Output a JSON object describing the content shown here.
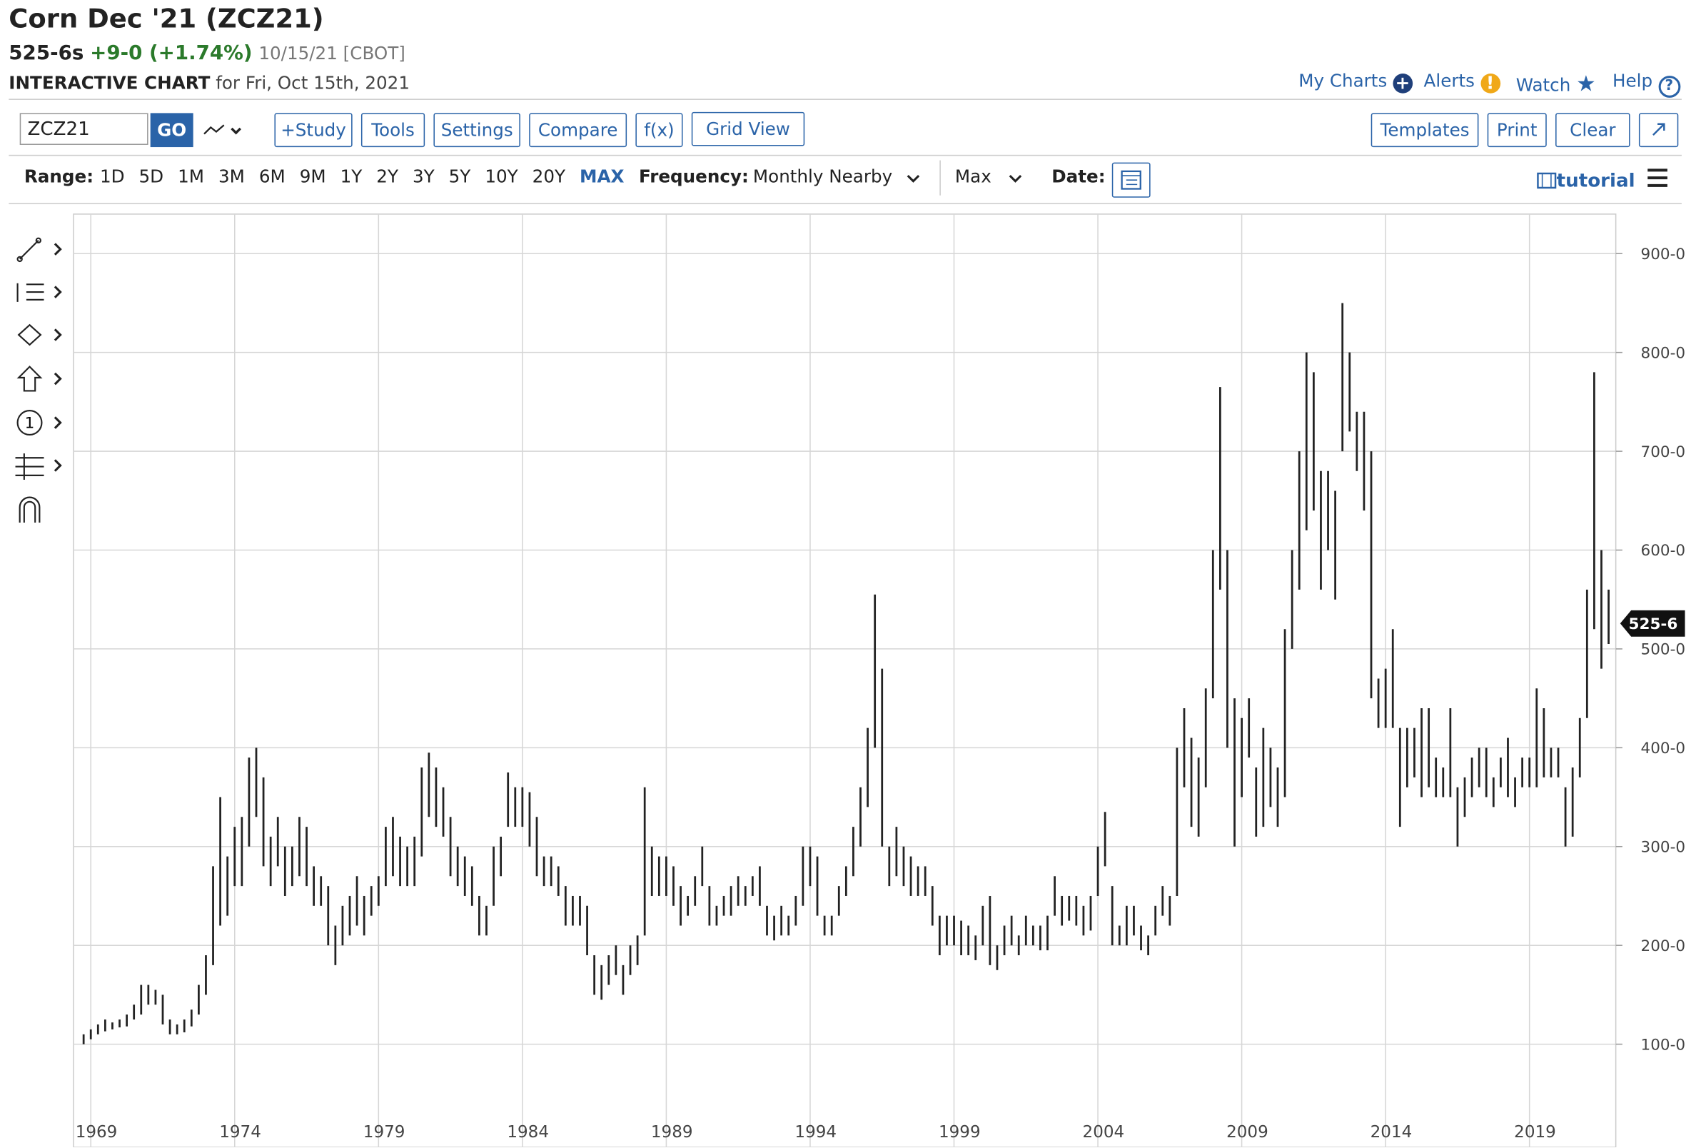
{
  "header": {
    "title": "Corn Dec '21 (ZCZ21)",
    "last": "525-6s",
    "change": "+9-0 (+1.74%)",
    "date": "10/15/21 [CBOT]",
    "chart_label": "INTERACTIVE CHART",
    "chart_date": "for Fri, Oct 15th, 2021"
  },
  "top_links": [
    "My Charts",
    "Alerts",
    "Watch",
    "Help"
  ],
  "toolbar": {
    "symbol": "ZCZ21",
    "go": "GO",
    "buttons_left": [
      "+Study",
      "Tools",
      "Settings",
      "Compare",
      "f(x)",
      "Grid View"
    ],
    "buttons_right": [
      "Templates",
      "Print",
      "Clear"
    ]
  },
  "range_bar": {
    "range_label": "Range:",
    "ranges": [
      "1D",
      "5D",
      "1M",
      "3M",
      "6M",
      "9M",
      "1Y",
      "2Y",
      "3Y",
      "5Y",
      "10Y",
      "20Y",
      "MAX"
    ],
    "active": "MAX",
    "frequency_label": "Frequency:",
    "frequency": "Monthly Nearby",
    "period": "Max",
    "date_label": "Date:",
    "tutorial": "tutorial"
  },
  "tool_icon_number": "1",
  "chart_data": {
    "type": "ohlc",
    "color": "#222222",
    "x": [
      1968.75,
      1969,
      1969.25,
      1969.5,
      1969.75,
      1970,
      1970.25,
      1970.5,
      1970.75,
      1971,
      1971.25,
      1971.5,
      1971.75,
      1972,
      1972.25,
      1972.5,
      1972.75,
      1973,
      1973.25,
      1973.5,
      1973.75,
      1974,
      1974.25,
      1974.5,
      1974.75,
      1975,
      1975.25,
      1975.5,
      1975.75,
      1976,
      1976.25,
      1976.5,
      1976.75,
      1977,
      1977.25,
      1977.5,
      1977.75,
      1978,
      1978.25,
      1978.5,
      1978.75,
      1979,
      1979.25,
      1979.5,
      1979.75,
      1980,
      1980.25,
      1980.5,
      1980.75,
      1981,
      1981.25,
      1981.5,
      1981.75,
      1982,
      1982.25,
      1982.5,
      1982.75,
      1983,
      1983.25,
      1983.5,
      1983.75,
      1984,
      1984.25,
      1984.5,
      1984.75,
      1985,
      1985.25,
      1985.5,
      1985.75,
      1986,
      1986.25,
      1986.5,
      1986.75,
      1987,
      1987.25,
      1987.5,
      1987.75,
      1988,
      1988.25,
      1988.5,
      1988.75,
      1989,
      1989.25,
      1989.5,
      1989.75,
      1990,
      1990.25,
      1990.5,
      1990.75,
      1991,
      1991.25,
      1991.5,
      1991.75,
      1992,
      1992.25,
      1992.5,
      1992.75,
      1993,
      1993.25,
      1993.5,
      1993.75,
      1994,
      1994.25,
      1994.5,
      1994.75,
      1995,
      1995.25,
      1995.5,
      1995.75,
      1996,
      1996.25,
      1996.5,
      1996.75,
      1997,
      1997.25,
      1997.5,
      1997.75,
      1998,
      1998.25,
      1998.5,
      1998.75,
      1999,
      1999.25,
      1999.5,
      1999.75,
      2000,
      2000.25,
      2000.5,
      2000.75,
      2001,
      2001.25,
      2001.5,
      2001.75,
      2002,
      2002.25,
      2002.5,
      2002.75,
      2003,
      2003.25,
      2003.5,
      2003.75,
      2004,
      2004.25,
      2004.5,
      2004.75,
      2005,
      2005.25,
      2005.5,
      2005.75,
      2006,
      2006.25,
      2006.5,
      2006.75,
      2007,
      2007.25,
      2007.5,
      2007.75,
      2008,
      2008.25,
      2008.5,
      2008.75,
      2009,
      2009.25,
      2009.5,
      2009.75,
      2010,
      2010.25,
      2010.5,
      2010.75,
      2011,
      2011.25,
      2011.5,
      2011.75,
      2012,
      2012.25,
      2012.5,
      2012.75,
      2013,
      2013.25,
      2013.5,
      2013.75,
      2014,
      2014.25,
      2014.5,
      2014.75,
      2015,
      2015.25,
      2015.5,
      2015.75,
      2016,
      2016.25,
      2016.5,
      2016.75,
      2017,
      2017.25,
      2017.5,
      2017.75,
      2018,
      2018.25,
      2018.5,
      2018.75,
      2019,
      2019.25,
      2019.5,
      2019.75,
      2020,
      2020.25,
      2020.5,
      2020.75,
      2021,
      2021.25,
      2021.5,
      2021.75
    ],
    "high": [
      110,
      115,
      120,
      125,
      122,
      125,
      130,
      140,
      160,
      160,
      155,
      150,
      125,
      120,
      125,
      135,
      160,
      190,
      280,
      350,
      290,
      320,
      330,
      390,
      400,
      370,
      310,
      330,
      300,
      300,
      330,
      320,
      280,
      270,
      260,
      220,
      240,
      250,
      270,
      250,
      260,
      270,
      320,
      330,
      310,
      300,
      310,
      380,
      395,
      380,
      360,
      330,
      300,
      290,
      280,
      250,
      240,
      300,
      310,
      375,
      360,
      360,
      355,
      330,
      290,
      290,
      280,
      260,
      250,
      250,
      240,
      190,
      180,
      190,
      200,
      180,
      200,
      210,
      360,
      300,
      290,
      290,
      280,
      260,
      250,
      270,
      300,
      260,
      240,
      250,
      260,
      270,
      260,
      270,
      280,
      240,
      230,
      240,
      230,
      250,
      300,
      300,
      290,
      230,
      230,
      260,
      280,
      320,
      360,
      420,
      555,
      480,
      300,
      320,
      300,
      290,
      280,
      280,
      260,
      230,
      230,
      230,
      225,
      220,
      210,
      240,
      250,
      200,
      220,
      230,
      210,
      230,
      220,
      220,
      230,
      270,
      250,
      250,
      250,
      240,
      250,
      300,
      335,
      260,
      220,
      240,
      240,
      220,
      210,
      240,
      260,
      250,
      400,
      440,
      410,
      390,
      460,
      600,
      765,
      600,
      450,
      430,
      450,
      380,
      420,
      400,
      380,
      520,
      600,
      700,
      800,
      780,
      680,
      680,
      660,
      850,
      800,
      740,
      740,
      700,
      470,
      480,
      520,
      420,
      420,
      420,
      440,
      440,
      390,
      380,
      440,
      360,
      370,
      390,
      400,
      400,
      370,
      390,
      410,
      370,
      390,
      390,
      460,
      440,
      400,
      400,
      360,
      380,
      430,
      560,
      780,
      600,
      560
    ],
    "low": [
      100,
      105,
      110,
      113,
      115,
      117,
      118,
      125,
      130,
      140,
      140,
      120,
      110,
      110,
      112,
      118,
      130,
      150,
      180,
      220,
      230,
      260,
      260,
      300,
      330,
      280,
      260,
      280,
      250,
      260,
      270,
      260,
      240,
      240,
      200,
      180,
      200,
      210,
      220,
      210,
      230,
      240,
      260,
      270,
      260,
      260,
      260,
      290,
      330,
      320,
      310,
      270,
      260,
      250,
      240,
      210,
      210,
      240,
      270,
      320,
      320,
      320,
      300,
      270,
      260,
      260,
      250,
      220,
      220,
      220,
      190,
      150,
      145,
      160,
      170,
      150,
      170,
      180,
      210,
      250,
      250,
      250,
      240,
      220,
      230,
      240,
      260,
      220,
      220,
      230,
      230,
      240,
      240,
      250,
      240,
      210,
      205,
      210,
      210,
      220,
      240,
      260,
      230,
      210,
      210,
      230,
      250,
      270,
      300,
      340,
      400,
      300,
      260,
      270,
      260,
      250,
      250,
      250,
      220,
      190,
      200,
      200,
      190,
      190,
      185,
      200,
      180,
      175,
      190,
      200,
      190,
      200,
      200,
      195,
      195,
      230,
      220,
      225,
      220,
      210,
      215,
      250,
      280,
      200,
      200,
      200,
      210,
      195,
      190,
      210,
      230,
      220,
      250,
      360,
      320,
      310,
      360,
      450,
      560,
      400,
      300,
      350,
      390,
      310,
      320,
      340,
      320,
      350,
      500,
      560,
      620,
      640,
      560,
      600,
      550,
      700,
      720,
      680,
      640,
      450,
      420,
      420,
      420,
      320,
      360,
      370,
      350,
      360,
      350,
      350,
      350,
      300,
      330,
      350,
      360,
      350,
      340,
      360,
      350,
      340,
      360,
      360,
      360,
      370,
      370,
      370,
      300,
      310,
      370,
      430,
      520,
      480,
      505
    ],
    "xlim": [
      1968.4,
      2022
    ],
    "xticks": [
      1969,
      1974,
      1979,
      1984,
      1989,
      1994,
      1999,
      2004,
      2009,
      2014,
      2019
    ],
    "ylim": [
      29,
      940
    ],
    "yticks": [
      {
        "value": 100,
        "label": "100-0"
      },
      {
        "value": 200,
        "label": "200-0"
      },
      {
        "value": 300,
        "label": "300-0"
      },
      {
        "value": 400,
        "label": "400-0"
      },
      {
        "value": 500,
        "label": "500-0"
      },
      {
        "value": 600,
        "label": "600-0"
      },
      {
        "value": 700,
        "label": "700-0"
      },
      {
        "value": 800,
        "label": "800-0"
      },
      {
        "value": 900,
        "label": "900-0"
      }
    ],
    "grid": true,
    "last_price": {
      "value": 525.75,
      "label": "525-6"
    }
  }
}
